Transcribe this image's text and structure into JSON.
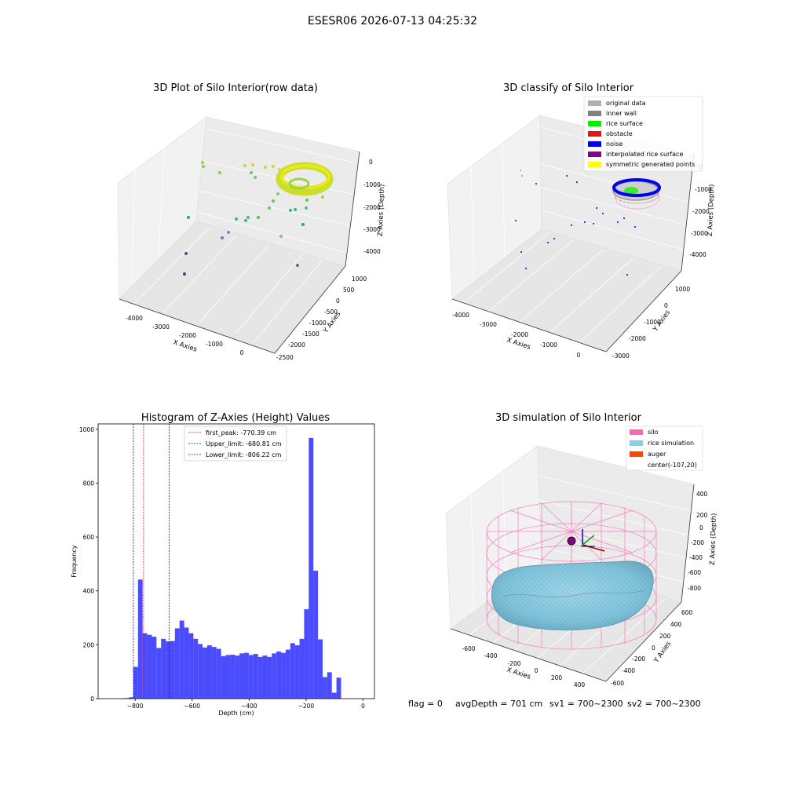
{
  "suptitle": "ESESR06 2026-07-13 04:25:32",
  "chart_data": [
    {
      "type": "scatter",
      "panel": "3d-raw",
      "title": "3D Plot of Silo Interior(row data)",
      "xlabel": "X Axies",
      "ylabel": "Y Axies",
      "zlabel": "Z Axies (Depth)",
      "x_ticks": [
        "-4000",
        "-3000",
        "-2000",
        "-1000",
        "0"
      ],
      "y_ticks": [
        "1000",
        "500",
        "0",
        "-500",
        "-1000",
        "-1500",
        "-2000",
        "-2500"
      ],
      "z_ticks": [
        "0",
        "-1000",
        "-2000",
        "-3000",
        "-4000"
      ],
      "colormap": "viridis"
    },
    {
      "type": "scatter",
      "panel": "3d-classify",
      "title": "3D classify of Silo Interior",
      "xlabel": "X Axies",
      "ylabel": "Y Axies",
      "zlabel": "Z Axies (Depth)",
      "x_ticks": [
        "-4000",
        "-3000",
        "-2000",
        "-1000",
        "0"
      ],
      "y_ticks": [
        "1000",
        "0",
        "-1000",
        "-2000",
        "-3000"
      ],
      "z_ticks": [
        "0",
        "-1000",
        "-2000",
        "-3000",
        "-4000"
      ],
      "legend_position": "top-right",
      "legend": [
        {
          "label": "original data",
          "color": "#b0b0b0"
        },
        {
          "label": "inner wall",
          "color": "#808080"
        },
        {
          "label": "rice surface",
          "color": "#00ee00"
        },
        {
          "label": "obstacle",
          "color": "#ee1111"
        },
        {
          "label": "noise",
          "color": "#0000ee"
        },
        {
          "label": "interpolated rice surface",
          "color": "#880088"
        },
        {
          "label": "symmetric generated points",
          "color": "#ffff00"
        }
      ]
    },
    {
      "type": "bar",
      "panel": "histogram",
      "title": "Histogram of Z-Axies (Height) Values",
      "xlabel": "Depth (cm)",
      "ylabel": "Frequency",
      "xlim": [
        -930,
        40
      ],
      "ylim": [
        0,
        1020
      ],
      "x_ticks": [
        -800,
        -600,
        -400,
        -200,
        0
      ],
      "y_ticks": [
        0,
        200,
        400,
        600,
        800,
        1000
      ],
      "bin_width": 16.2,
      "bar_color": "#0000ff",
      "bins_start": [
        -838.6,
        -822.4,
        -806.2,
        -790.0,
        -773.8,
        -757.6,
        -741.4,
        -725.2,
        -709.0,
        -692.8,
        -676.6,
        -660.4,
        -644.2,
        -628.0,
        -611.8,
        -595.6,
        -579.4,
        -563.2,
        -547.0,
        -530.8,
        -514.6,
        -498.4,
        -482.2,
        -466.0,
        -449.8,
        -433.6,
        -417.4,
        -401.2,
        -385.0,
        -368.8,
        -352.6,
        -336.4,
        -320.2,
        -304.0,
        -287.8,
        -271.6,
        -255.4,
        -239.2,
        -223.0,
        -206.8,
        -190.6,
        -174.4,
        -158.2,
        -142.0,
        -125.8,
        -109.6,
        -93.4,
        -77.2,
        -61.0,
        -44.8,
        -28.6,
        -12.4
      ],
      "values": [
        2,
        5,
        118,
        442,
        243,
        237,
        230,
        188,
        222,
        213,
        214,
        261,
        290,
        264,
        243,
        222,
        203,
        190,
        198,
        192,
        185,
        158,
        162,
        163,
        160,
        168,
        170,
        162,
        166,
        155,
        160,
        155,
        168,
        175,
        170,
        182,
        206,
        198,
        222,
        332,
        968,
        475,
        220,
        80,
        98,
        22,
        78,
        0,
        0,
        0,
        0,
        0
      ],
      "reference_lines": [
        {
          "label": "first_peak: -770.39 cm",
          "x": -770.39,
          "color": "#ff0000"
        },
        {
          "label": "Upper_limit: -680.81 cm",
          "x": -680.81,
          "color": "#0000ff"
        },
        {
          "label": "Lower_limit: -806.22 cm",
          "x": -806.22,
          "color": "#0000ff"
        }
      ]
    },
    {
      "type": "area",
      "panel": "3d-simulation",
      "title": "3D simulation of Silo Interior",
      "xlabel": "X Axies",
      "ylabel": "Y Axies",
      "zlabel": "Z Axies (Depth)",
      "x_ticks": [
        "-600",
        "-400",
        "-200",
        "0",
        "200",
        "400"
      ],
      "y_ticks": [
        "600",
        "400",
        "200",
        "0",
        "-200",
        "-400",
        "-600"
      ],
      "z_ticks": [
        "400",
        "200",
        "0",
        "-200",
        "-400",
        "-600",
        "-800"
      ],
      "legend_position": "top-right",
      "legend": [
        {
          "label": "silo",
          "color": "#ff69b4"
        },
        {
          "label": "rice simulation",
          "color": "#87ceeb"
        },
        {
          "label": "auger",
          "color": "#ff4500"
        },
        {
          "label": "center(-107,20)",
          "color": "none"
        }
      ]
    }
  ],
  "footer": {
    "flag": "flag = 0",
    "avg": "avgDepth = 701 cm",
    "sv1": "sv1 = 700~2300",
    "sv2": "sv2 = 700~2300"
  }
}
